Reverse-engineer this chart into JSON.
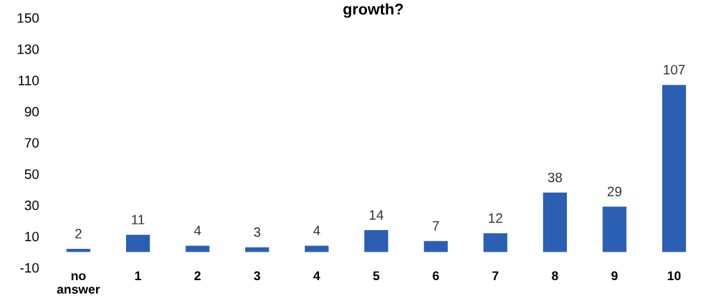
{
  "chart_data": {
    "type": "bar",
    "title": "growth?",
    "categories": [
      "no\nanswer",
      "1",
      "2",
      "3",
      "4",
      "5",
      "6",
      "7",
      "8",
      "9",
      "10"
    ],
    "values": [
      2,
      11,
      4,
      3,
      4,
      14,
      7,
      12,
      38,
      29,
      107
    ],
    "color": "#2b5fb4",
    "ylim": [
      -10,
      150
    ],
    "yticks": [
      -10,
      10,
      30,
      50,
      70,
      90,
      110,
      130,
      150
    ],
    "data_labels": true,
    "grid": false,
    "legend": false
  }
}
